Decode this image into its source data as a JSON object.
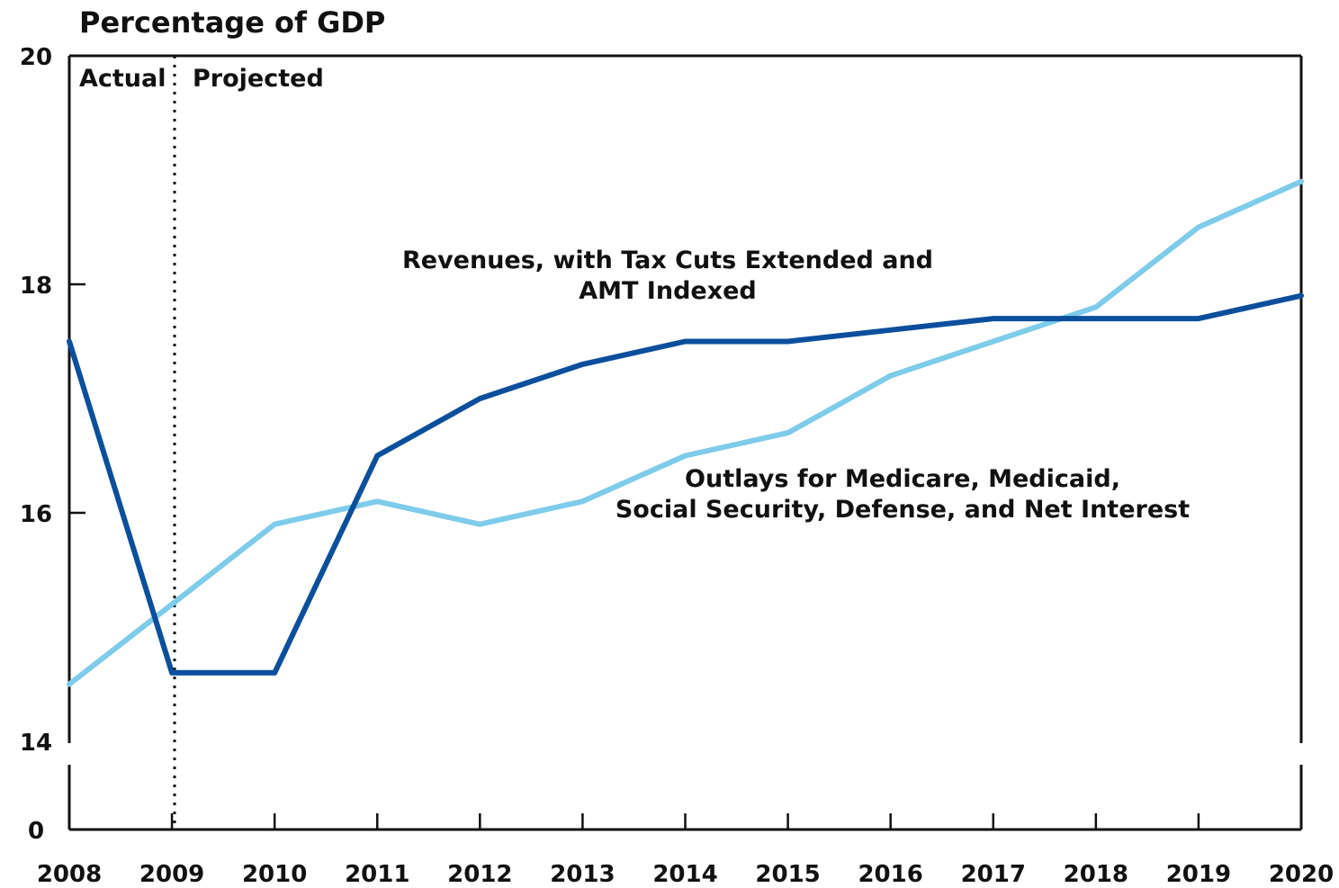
{
  "chart_data": {
    "type": "line",
    "ylabel": "Percentage of GDP",
    "x": [
      "2008",
      "2009",
      "2010",
      "2011",
      "2012",
      "2013",
      "2014",
      "2015",
      "2016",
      "2017",
      "2018",
      "2019",
      "2020"
    ],
    "yticks": [
      "20",
      "18",
      "16",
      "14",
      "0"
    ],
    "ylim": [
      14,
      20
    ],
    "axis_break": true,
    "period_labels": {
      "actual": "Actual",
      "projected": "Projected"
    },
    "divider_year": "2009",
    "series": [
      {
        "key": "revenues",
        "label_lines": [
          "Revenues, with Tax Cuts Extended and",
          "AMT Indexed"
        ],
        "color": "#0b4f9c",
        "values": [
          17.5,
          14.6,
          14.6,
          16.5,
          17.0,
          17.3,
          17.5,
          17.5,
          17.6,
          17.7,
          17.7,
          17.7,
          17.9
        ]
      },
      {
        "key": "outlays",
        "label_lines": [
          "Outlays for Medicare, Medicaid,",
          "Social Security, Defense, and Net Interest"
        ],
        "color": "#7ecbea",
        "values": [
          14.5,
          15.2,
          15.9,
          16.1,
          15.9,
          16.1,
          16.5,
          16.7,
          17.2,
          17.5,
          17.8,
          18.5,
          18.9
        ]
      }
    ],
    "grid": false,
    "legend": "none (direct labels)"
  }
}
